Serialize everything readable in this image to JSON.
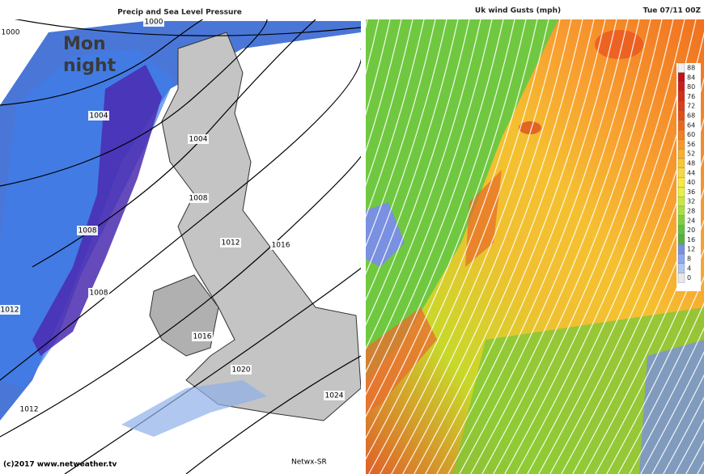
{
  "left_panel": {
    "title": "Precip and Sea Level Pressure",
    "overlay": [
      "Mon",
      "night"
    ],
    "isobar_labels": [
      "1000",
      "1000",
      "1004",
      "1004",
      "1008",
      "1008",
      "1008",
      "1012",
      "1012",
      "1012",
      "1016",
      "1016",
      "1020",
      "1024"
    ],
    "copyright": "(c)2017 www.netweather.tv",
    "credit": "Netwx-SR"
  },
  "right_panel": {
    "title": "Uk wind Gusts (mph)",
    "timestamp": "Tue 07/11 00Z",
    "scale": [
      88,
      84,
      80,
      76,
      72,
      68,
      64,
      60,
      56,
      52,
      48,
      44,
      40,
      36,
      32,
      28,
      24,
      20,
      16,
      12,
      8,
      4,
      0
    ]
  }
}
